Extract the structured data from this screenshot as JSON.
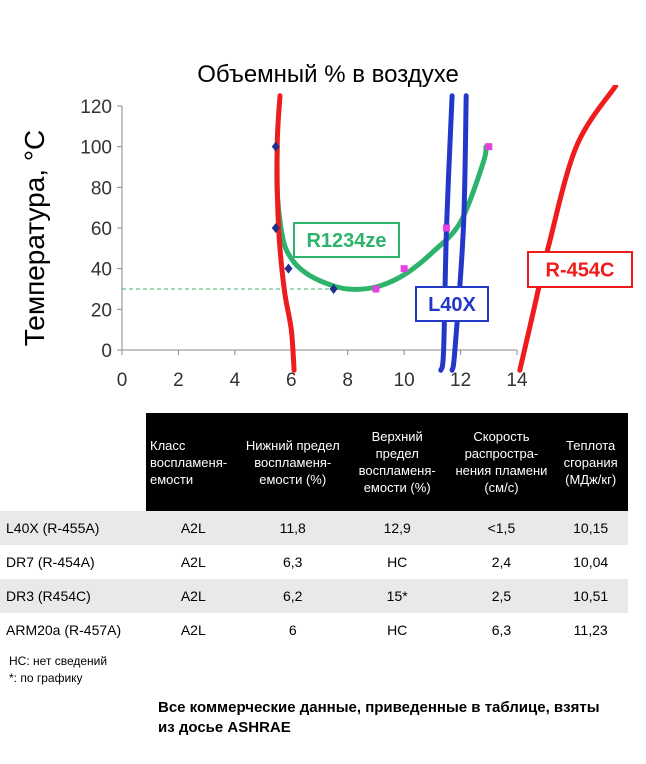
{
  "chart_data": {
    "type": "line",
    "title": "Объемный % в воздухе",
    "xlabel": "",
    "ylabel": "Температура, °C",
    "xlim": [
      0,
      14
    ],
    "ylim": [
      0,
      120
    ],
    "xticks": [
      0,
      2,
      4,
      6,
      8,
      10,
      12,
      14
    ],
    "yticks": [
      0,
      20,
      40,
      60,
      80,
      100,
      120
    ],
    "grid": false,
    "reference_line": {
      "y": 30,
      "x_range": [
        0,
        8.3
      ],
      "style": "dashed",
      "color": "#3cb371"
    },
    "series": [
      {
        "name": "R1234ze",
        "color": "#2db36b",
        "curve": [
          [
            5.5,
            100
          ],
          [
            5.5,
            78
          ],
          [
            5.7,
            55
          ],
          [
            6.0,
            45
          ],
          [
            6.5,
            38
          ],
          [
            7.2,
            33
          ],
          [
            8.0,
            30
          ],
          [
            9.0,
            31
          ],
          [
            10.0,
            37
          ],
          [
            11.0,
            48
          ],
          [
            12.0,
            63
          ],
          [
            12.8,
            92
          ],
          [
            12.9,
            100
          ]
        ],
        "markers_diamond": [
          [
            5.45,
            100
          ],
          [
            5.45,
            60
          ],
          [
            5.9,
            40
          ],
          [
            7.5,
            30
          ]
        ],
        "markers_square": [
          [
            9.0,
            30
          ],
          [
            10.0,
            40
          ],
          [
            11.5,
            60
          ],
          [
            13.0,
            100
          ]
        ]
      },
      {
        "name": "R-454C",
        "color": "#ee1c1c",
        "curves": [
          [
            [
              5.6,
              125
            ],
            [
              5.5,
              100
            ],
            [
              5.55,
              60
            ],
            [
              5.75,
              30
            ],
            [
              6.0,
              10
            ],
            [
              6.1,
              -10
            ]
          ],
          [
            [
              14.1,
              -10
            ],
            [
              14.6,
              20
            ],
            [
              15.1,
              50
            ],
            [
              16.1,
              100
            ],
            [
              17.5,
              130
            ]
          ]
        ]
      },
      {
        "name": "L40X",
        "color": "#2338c8",
        "curves": [
          [
            [
              11.7,
              125
            ],
            [
              11.5,
              60
            ],
            [
              11.4,
              0
            ],
            [
              11.3,
              -10
            ]
          ],
          [
            [
              12.2,
              125
            ],
            [
              12.1,
              60
            ],
            [
              11.8,
              0
            ],
            [
              11.7,
              -10
            ]
          ]
        ]
      }
    ]
  },
  "table": {
    "headers": [
      "Класс воспламеня-емости",
      "Нижний предел воспламеня-емости (%)",
      "Верхний предел воспламеня-емости (%)",
      "Скорость распростра-нения пламени (см/с)",
      "Теплота сгорания (МДж/кг)"
    ],
    "rows": [
      {
        "name": "L40X (R-455A)",
        "cls": "A2L",
        "lfl": "11,8",
        "ufl": "12,9",
        "speed": "<1,5",
        "heat": "10,15"
      },
      {
        "name": "DR7 (R-454A)",
        "cls": "A2L",
        "lfl": "6,3",
        "ufl": "НС",
        "speed": "2,4",
        "heat": "10,04"
      },
      {
        "name": "DR3 (R454C)",
        "cls": "A2L",
        "lfl": "6,2",
        "ufl": "15*",
        "speed": "2,5",
        "heat": "10,51"
      },
      {
        "name": "ARM20a (R-457A)",
        "cls": "A2L",
        "lfl": "6",
        "ufl": "НС",
        "speed": "6,3",
        "heat": "11,23"
      }
    ]
  },
  "notes": {
    "nc": "НС: нет сведений",
    "star": "*: по графику"
  },
  "footer": "Все коммерческие данные, приведенные в таблице, взяты из досье ASHRAE"
}
